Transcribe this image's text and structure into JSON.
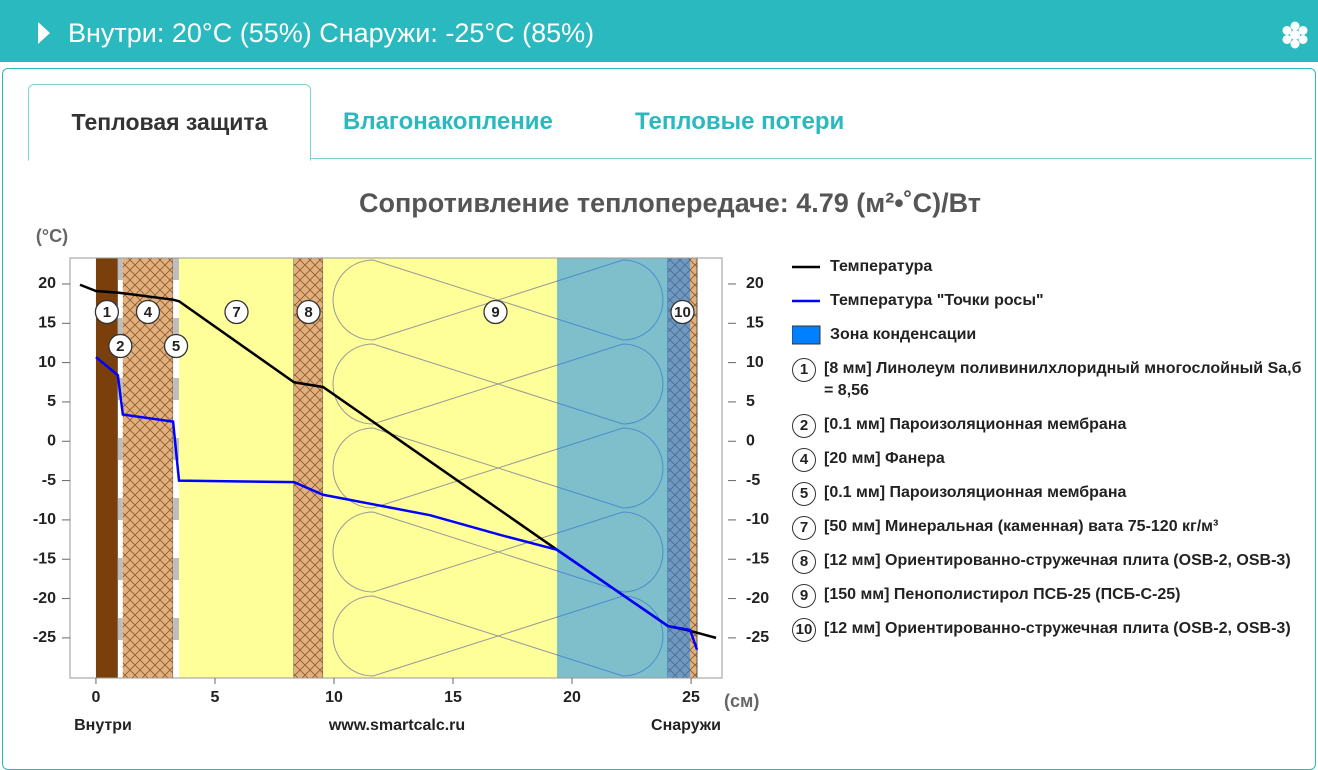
{
  "header": {
    "title": "Внутри: 20°C (55%) Снаружи: -25°C (85%)"
  },
  "tabs": [
    "Тепловая защита",
    "Влагонакопление",
    "Тепловые потери"
  ],
  "chart_data": {
    "type": "line",
    "title": "Сопротивление теплопередаче: 4.79 (м²•˚C)/Вт",
    "y_label": "(°C)",
    "x_label": "(см)",
    "inside_label": "Внутри",
    "source_label": "www.smartcalc.ru",
    "outside_label": "Снаружи",
    "xlim": [
      -1.09,
      26.3
    ],
    "ylim": [
      -30.1,
      23.3
    ],
    "xticks": [
      0,
      5,
      10,
      15,
      20,
      25
    ],
    "yticks": [
      20,
      15,
      10,
      5,
      0,
      -5,
      -10,
      -15,
      -20,
      -25
    ],
    "series": [
      {
        "name": "Температура",
        "color": "#000000",
        "x": [
          -0.67,
          0,
          0.92,
          3.24,
          3.49,
          8.32,
          9.54,
          19.37,
          24.03,
          24.96,
          26.05
        ],
        "values": [
          19.9,
          19.1,
          18.9,
          18.0,
          17.8,
          7.5,
          6.9,
          -13.8,
          -23.5,
          -24.1,
          -25.0
        ]
      },
      {
        "name": "Температура \"Точки росы\"",
        "color": "#0000ff",
        "x": [
          0,
          0.92,
          1.13,
          3.24,
          3.49,
          8.32,
          9.54,
          14.03,
          16.97,
          19.37,
          24.03,
          24.96,
          25.25
        ],
        "values": [
          10.7,
          8.4,
          3.4,
          2.5,
          -5.0,
          -5.2,
          -6.8,
          -9.4,
          -11.9,
          -13.8,
          -23.5,
          -24.0,
          -26.5
        ]
      }
    ],
    "condensation": {
      "name": "Зона конденсации",
      "color": "#0080ff",
      "x": [
        19.37,
        24.96
      ]
    },
    "layers": [
      {
        "number": 1,
        "label": "[8 мм] Линолеум поливинилхлоридный многослойный Sа,б = 8,56",
        "x": [
          0,
          0.92
        ],
        "style": "solid",
        "color": "#7a3f0b"
      },
      {
        "number": 2,
        "label": "[0.1 мм] Пароизоляционная мембрана",
        "x": [
          0.92,
          1.13
        ],
        "style": "membrane",
        "color": "#bdbdbd"
      },
      {
        "number": 4,
        "label": "[20 мм] Фанера",
        "x": [
          1.13,
          3.24
        ],
        "style": "hatched",
        "color": "#e2b07e"
      },
      {
        "number": 5,
        "label": "[0.1 мм] Пароизоляционная мембрана",
        "x": [
          3.24,
          3.49
        ],
        "style": "membrane",
        "color": "#bdbdbd"
      },
      {
        "number": 7,
        "label": "[50 мм] Минеральная (каменная) вата 75-120 кг/м³",
        "x": [
          3.49,
          8.32
        ],
        "style": "solid",
        "color": "#ffff99"
      },
      {
        "number": 8,
        "label": "[12 мм] Ориентированно-стружечная плита (OSB-2, OSB-3)",
        "x": [
          8.32,
          9.54
        ],
        "style": "hatched",
        "color": "#e2b07e"
      },
      {
        "number": 9,
        "label": "[150 мм] Пенополистирол ПСБ-25 (ПСБ-С-25)",
        "x": [
          9.54,
          24.03
        ],
        "style": "foam",
        "color": "#ffff99"
      },
      {
        "number": 10,
        "label": "[12 мм] Ориентированно-стружечная плита (OSB-2, OSB-3)",
        "x": [
          24.03,
          25.25
        ],
        "style": "hatched",
        "color": "#e2b07e"
      }
    ]
  }
}
